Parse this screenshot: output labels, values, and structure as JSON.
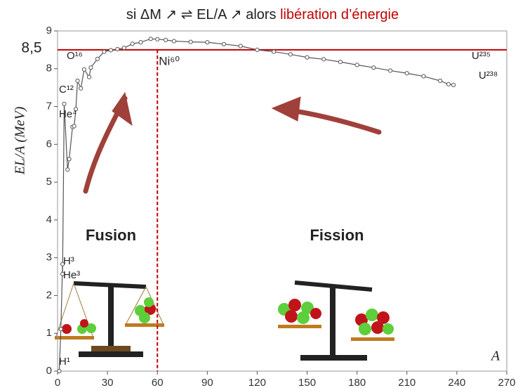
{
  "chart_data": {
    "type": "line",
    "title": "si ΔM ↗ ⇌ EL/A ↗ alors",
    "title_highlight": "libération d’énergie",
    "y_label": "EL/A (MeV)",
    "x_label": "A",
    "xlim": [
      0,
      270
    ],
    "xticks": [
      0,
      30,
      60,
      90,
      120,
      150,
      180,
      210,
      240,
      270
    ],
    "ylim": [
      0,
      9
    ],
    "yticks": [
      0,
      1,
      2,
      3,
      4,
      5,
      6,
      7,
      8,
      9
    ],
    "reference_line": {
      "value": 8.5,
      "label": "8,5",
      "color": "#c00000"
    },
    "vertical_line": {
      "value": 60,
      "label": "Ni⁶⁰",
      "color": "#c00000"
    },
    "annotations": [
      "H¹",
      "H³",
      "He³",
      "He⁴",
      "C¹²",
      "O¹⁶",
      "U²³⁵",
      "U²³⁸",
      "Fusion",
      "Fission"
    ],
    "series": [
      {
        "color": "#555555",
        "x": [
          1,
          2,
          3,
          3,
          4,
          6,
          7,
          9,
          10,
          11,
          12,
          14,
          16,
          19,
          20,
          24,
          28,
          32,
          36,
          40,
          45,
          50,
          56,
          60,
          65,
          70,
          80,
          90,
          100,
          110,
          120,
          130,
          140,
          150,
          160,
          170,
          180,
          190,
          200,
          210,
          220,
          230,
          235,
          238
        ],
        "values": [
          0,
          1.11,
          2.83,
          2.57,
          7.07,
          5.33,
          5.61,
          6.46,
          6.48,
          6.93,
          7.68,
          7.48,
          7.98,
          7.78,
          8.03,
          8.26,
          8.45,
          8.49,
          8.52,
          8.55,
          8.66,
          8.7,
          8.79,
          8.78,
          8.76,
          8.73,
          8.71,
          8.7,
          8.65,
          8.6,
          8.5,
          8.45,
          8.38,
          8.3,
          8.25,
          8.18,
          8.1,
          8.03,
          7.95,
          7.88,
          7.8,
          7.68,
          7.59,
          7.57
        ]
      }
    ]
  }
}
